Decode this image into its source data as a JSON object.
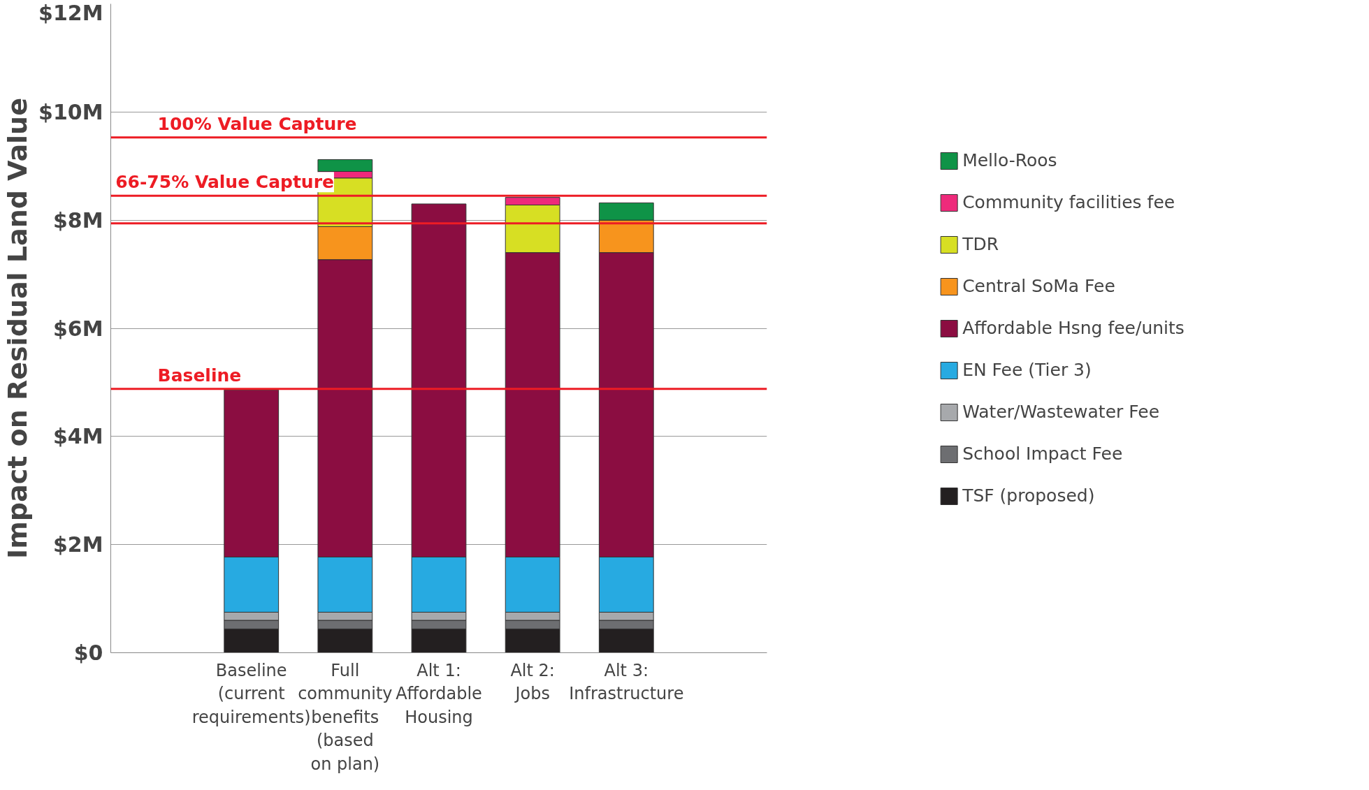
{
  "chart_data": {
    "type": "bar",
    "stacked": true,
    "ylabel": "Impact on Residual Land Value",
    "categories": [
      "Baseline\n(current\nrequirements)",
      "Full\ncommunity\nbenefits\n(based\non plan)",
      "Alt 1:\nAffordable\nHousing",
      "Alt 2:\nJobs",
      "Alt 3:\nInfrastructure"
    ],
    "series": [
      {
        "name": "TSF (proposed)",
        "color": "#231f20",
        "values": [
          0.44,
          0.44,
          0.44,
          0.44,
          0.44
        ]
      },
      {
        "name": "School Impact Fee",
        "color": "#6d6e71",
        "values": [
          0.16,
          0.16,
          0.16,
          0.16,
          0.16
        ]
      },
      {
        "name": "Water/Wastewater Fee",
        "color": "#a7a9ac",
        "values": [
          0.15,
          0.15,
          0.15,
          0.15,
          0.15
        ]
      },
      {
        "name": "EN Fee (Tier 3)",
        "color": "#27aae1",
        "values": [
          1.02,
          1.02,
          1.02,
          1.02,
          1.02
        ]
      },
      {
        "name": "Affordable Hsng fee/units",
        "color": "#8b0d41",
        "values": [
          3.09,
          5.5,
          6.53,
          5.63,
          5.63
        ]
      },
      {
        "name": "Central SoMa Fee",
        "color": "#f7941d",
        "values": [
          null,
          0.61,
          null,
          null,
          0.6
        ]
      },
      {
        "name": "TDR",
        "color": "#d7df23",
        "values": [
          null,
          0.9,
          null,
          0.88,
          null
        ]
      },
      {
        "name": "Community facilities fee",
        "color": "#ee2a7b",
        "values": [
          null,
          0.12,
          null,
          0.14,
          null
        ]
      },
      {
        "name": "Mello-Roos",
        "color": "#0f9347",
        "values": [
          null,
          0.22,
          null,
          null,
          0.32
        ]
      }
    ],
    "ylim": [
      0,
      12
    ],
    "yticks": [
      {
        "value": 0,
        "label": "$0"
      },
      {
        "value": 2,
        "label": "$2M"
      },
      {
        "value": 4,
        "label": "$4M"
      },
      {
        "value": 6,
        "label": "$6M"
      },
      {
        "value": 8,
        "label": "$8M"
      },
      {
        "value": 10,
        "label": "$10M"
      },
      {
        "value": 12,
        "label": "$12M"
      }
    ],
    "grid": "y",
    "legend": "right",
    "ref_lines": [
      {
        "axis": "y",
        "value": 9.53,
        "label": "100% Value Capture",
        "color": "#ed1c24"
      },
      {
        "axis": "y",
        "value": 8.45,
        "label": "66-75% Value Capture",
        "color": "#ed1c24"
      },
      {
        "axis": "y",
        "value": 7.94,
        "label": null,
        "color": "#ed1c24"
      },
      {
        "axis": "y",
        "value": 4.88,
        "label": "Baseline",
        "color": "#ed1c24"
      }
    ]
  }
}
